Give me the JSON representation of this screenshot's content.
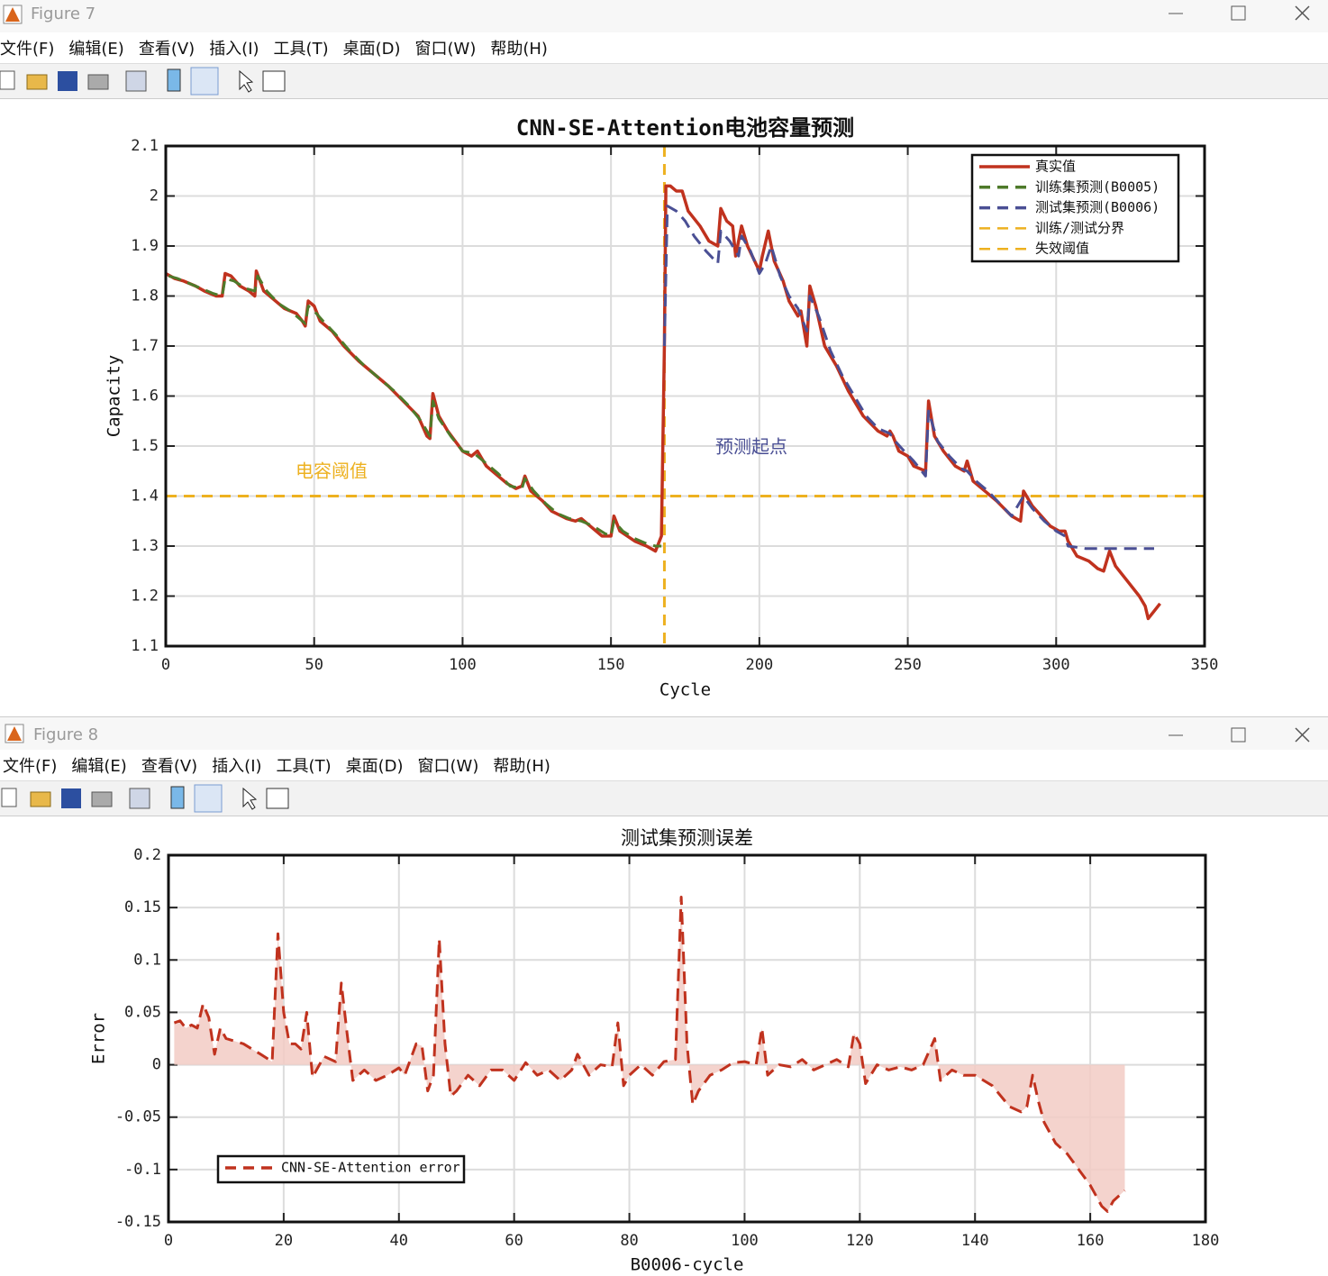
{
  "windows": [
    {
      "title": "Figure 7",
      "menu": [
        "文件(F)",
        "编辑(E)",
        "查看(V)",
        "插入(I)",
        "工具(T)",
        "桌面(D)",
        "窗口(W)",
        "帮助(H)"
      ]
    },
    {
      "title": "Figure 8",
      "menu": [
        "文件(F)",
        "编辑(E)",
        "查看(V)",
        "插入(I)",
        "工具(T)",
        "桌面(D)",
        "窗口(W)",
        "帮助(H)"
      ]
    }
  ],
  "chart_data": [
    {
      "type": "line",
      "title": "CNN-SE-Attention电池容量预测",
      "xlabel": "Cycle",
      "ylabel": "Capacity",
      "xlim": [
        0,
        350
      ],
      "xticks": [
        0,
        50,
        100,
        150,
        200,
        250,
        300,
        350
      ],
      "ylim": [
        1.1,
        2.1
      ],
      "yticks": [
        1.1,
        1.2,
        1.3,
        1.4,
        1.5,
        1.6,
        1.7,
        1.8,
        1.9,
        2,
        2.1
      ],
      "grid": true,
      "legend": "upper right",
      "series": [
        {
          "name": "真实值",
          "color": "#c0321e",
          "style": "solid",
          "x": [
            0,
            3,
            6,
            10,
            13,
            17,
            19,
            20,
            22,
            25,
            28,
            30,
            30.5,
            33,
            37,
            40,
            44,
            46,
            47,
            48,
            50,
            52,
            56,
            60,
            65,
            70,
            75,
            80,
            85,
            88,
            89,
            90,
            92,
            95,
            100,
            103,
            105,
            108,
            112,
            115,
            118,
            120,
            121,
            123,
            127,
            130,
            135,
            138,
            140,
            143,
            147,
            150,
            151,
            153,
            158,
            162,
            165,
            167,
            168,
            168.5,
            170,
            172,
            174,
            176,
            180,
            183,
            186,
            187,
            189,
            191,
            192,
            194,
            196,
            200,
            201,
            203,
            205,
            208,
            210,
            213,
            214,
            216,
            217,
            219,
            222,
            226,
            230,
            235,
            240,
            243,
            244,
            245,
            247,
            250,
            252,
            256,
            257,
            259,
            262,
            266,
            269,
            270,
            272,
            276,
            280,
            285,
            288,
            289,
            292,
            295,
            298,
            301,
            303,
            304,
            307,
            311,
            314,
            316,
            318,
            320,
            324,
            328,
            330,
            331,
            333,
            335
          ],
          "values": [
            1.845,
            1.835,
            1.83,
            1.82,
            1.81,
            1.8,
            1.8,
            1.845,
            1.84,
            1.82,
            1.81,
            1.8,
            1.85,
            1.81,
            1.79,
            1.775,
            1.765,
            1.75,
            1.74,
            1.79,
            1.78,
            1.75,
            1.73,
            1.7,
            1.67,
            1.645,
            1.62,
            1.59,
            1.56,
            1.52,
            1.515,
            1.605,
            1.56,
            1.53,
            1.49,
            1.48,
            1.49,
            1.46,
            1.44,
            1.425,
            1.415,
            1.42,
            1.44,
            1.41,
            1.39,
            1.37,
            1.355,
            1.35,
            1.355,
            1.34,
            1.32,
            1.32,
            1.36,
            1.33,
            1.31,
            1.3,
            1.29,
            1.32,
            1.7,
            2.02,
            2.02,
            2.01,
            2.01,
            1.97,
            1.94,
            1.91,
            1.9,
            1.975,
            1.95,
            1.94,
            1.88,
            1.94,
            1.9,
            1.85,
            1.88,
            1.93,
            1.87,
            1.83,
            1.79,
            1.76,
            1.77,
            1.7,
            1.82,
            1.78,
            1.7,
            1.66,
            1.61,
            1.56,
            1.53,
            1.52,
            1.53,
            1.52,
            1.49,
            1.48,
            1.46,
            1.45,
            1.59,
            1.52,
            1.49,
            1.46,
            1.45,
            1.47,
            1.43,
            1.41,
            1.39,
            1.36,
            1.35,
            1.41,
            1.38,
            1.36,
            1.34,
            1.33,
            1.33,
            1.31,
            1.28,
            1.27,
            1.255,
            1.25,
            1.29,
            1.26,
            1.23,
            1.2,
            1.18,
            1.155,
            1.17,
            1.185
          ]
        },
        {
          "name": "训练集预测(B0005)",
          "color": "#4e7a2a",
          "style": "dashed",
          "x": [
            1,
            4,
            8,
            12,
            16,
            19,
            20,
            23,
            27,
            30,
            31,
            34,
            38,
            42,
            46,
            47,
            48,
            50,
            53,
            57,
            62,
            67,
            72,
            77,
            82,
            86,
            89,
            90,
            92,
            96,
            100,
            104,
            108,
            112,
            116,
            120,
            121,
            124,
            128,
            132,
            136,
            140,
            144,
            148,
            150,
            151,
            154,
            158,
            162,
            165,
            167
          ],
          "values": [
            1.84,
            1.835,
            1.825,
            1.815,
            1.805,
            1.8,
            1.835,
            1.83,
            1.815,
            1.81,
            1.84,
            1.81,
            1.785,
            1.77,
            1.75,
            1.745,
            1.78,
            1.77,
            1.75,
            1.725,
            1.69,
            1.66,
            1.635,
            1.61,
            1.58,
            1.55,
            1.52,
            1.59,
            1.555,
            1.52,
            1.49,
            1.485,
            1.465,
            1.445,
            1.42,
            1.415,
            1.435,
            1.41,
            1.385,
            1.365,
            1.355,
            1.35,
            1.34,
            1.325,
            1.32,
            1.35,
            1.33,
            1.315,
            1.305,
            1.3,
            1.3
          ]
        },
        {
          "name": "测试集预测(B0006)",
          "color": "#4a4f94",
          "style": "dashed",
          "x": [
            168,
            169,
            172,
            175,
            178,
            182,
            186,
            187,
            190,
            193,
            194,
            197,
            200,
            202,
            204,
            207,
            210,
            213,
            216,
            217,
            220,
            224,
            228,
            232,
            236,
            240,
            244,
            245,
            248,
            252,
            256,
            257,
            260,
            264,
            268,
            270,
            273,
            277,
            281,
            285,
            289,
            292,
            296,
            300,
            303,
            304,
            310,
            320,
            333
          ],
          "values": [
            1.7,
            1.98,
            1.97,
            1.95,
            1.92,
            1.89,
            1.865,
            1.93,
            1.91,
            1.88,
            1.92,
            1.89,
            1.845,
            1.865,
            1.9,
            1.84,
            1.8,
            1.775,
            1.73,
            1.8,
            1.76,
            1.69,
            1.64,
            1.6,
            1.56,
            1.535,
            1.525,
            1.515,
            1.495,
            1.47,
            1.44,
            1.57,
            1.51,
            1.48,
            1.455,
            1.45,
            1.43,
            1.41,
            1.385,
            1.36,
            1.4,
            1.375,
            1.35,
            1.33,
            1.32,
            1.3,
            1.295,
            1.295,
            1.295
          ]
        }
      ],
      "reference_lines": [
        {
          "name": "训练/测试分界",
          "color": "#edb120",
          "x": 168
        },
        {
          "name": "失效阈值",
          "color": "#edb120",
          "y": 1.4
        }
      ],
      "annotations": [
        {
          "text": "电容阈值",
          "color": "#edb120"
        },
        {
          "text": "预测起点",
          "color": "#4a4f94"
        }
      ]
    },
    {
      "type": "area",
      "title": "测试集预测误差",
      "xlabel": "B0006-cycle",
      "ylabel": "Error",
      "xlim": [
        0,
        180
      ],
      "xticks": [
        0,
        20,
        40,
        60,
        80,
        100,
        120,
        140,
        160,
        180
      ],
      "ylim": [
        -0.15,
        0.2
      ],
      "yticks": [
        -0.15,
        -0.1,
        -0.05,
        0,
        0.05,
        0.1,
        0.15,
        0.2
      ],
      "grid": true,
      "legend": "lower left",
      "fill_color": "#f2cbc4",
      "series": [
        {
          "name": "CNN-SE-Attention error",
          "color": "#c0321e",
          "style": "dashed",
          "x": [
            1,
            2,
            3,
            4,
            5,
            6,
            7,
            8,
            9,
            10,
            13,
            16,
            18,
            19,
            20,
            21,
            22,
            23,
            24,
            25,
            27,
            29,
            30,
            31,
            32,
            34,
            36,
            38,
            40,
            41,
            43,
            44,
            45,
            46,
            47,
            48,
            49,
            50,
            52,
            54,
            56,
            58,
            60,
            62,
            64,
            66,
            68,
            70,
            71,
            73,
            75,
            77,
            78,
            79,
            80,
            82,
            84,
            86,
            88,
            89,
            90,
            91,
            92,
            94,
            96,
            98,
            100,
            102,
            103,
            104,
            106,
            108,
            110,
            112,
            114,
            116,
            118,
            119,
            120,
            121,
            123,
            125,
            127,
            129,
            131,
            133,
            134,
            136,
            138,
            140,
            143,
            146,
            148,
            149,
            150,
            151,
            152,
            154,
            156,
            158,
            160,
            162,
            163,
            164,
            166
          ],
          "values": [
            0.04,
            0.042,
            0.035,
            0.038,
            0.035,
            0.058,
            0.045,
            0.01,
            0.035,
            0.025,
            0.02,
            0.01,
            0.003,
            0.125,
            0.05,
            0.02,
            0.02,
            0.015,
            0.05,
            -0.012,
            0.008,
            0.003,
            0.078,
            0.03,
            -0.015,
            -0.005,
            -0.015,
            -0.01,
            -0.003,
            -0.01,
            0.02,
            0.018,
            -0.025,
            -0.01,
            0.12,
            0.02,
            -0.03,
            -0.025,
            -0.01,
            -0.02,
            -0.005,
            -0.005,
            -0.015,
            0.002,
            -0.01,
            -0.005,
            -0.015,
            -0.005,
            0.01,
            -0.01,
            0,
            -0.002,
            0.04,
            -0.02,
            -0.01,
            0,
            -0.01,
            0.003,
            0.005,
            0.16,
            0.02,
            -0.038,
            -0.025,
            -0.01,
            -0.005,
            0.002,
            0.003,
            0,
            0.035,
            -0.01,
            0,
            -0.002,
            0.005,
            -0.005,
            0,
            0.005,
            -0.002,
            0.03,
            0.02,
            -0.018,
            0,
            -0.005,
            -0.002,
            -0.005,
            0,
            0.025,
            -0.015,
            -0.005,
            -0.01,
            -0.01,
            -0.02,
            -0.04,
            -0.045,
            -0.04,
            -0.01,
            -0.035,
            -0.055,
            -0.075,
            -0.085,
            -0.1,
            -0.115,
            -0.135,
            -0.14,
            -0.13,
            -0.12
          ]
        }
      ]
    }
  ]
}
